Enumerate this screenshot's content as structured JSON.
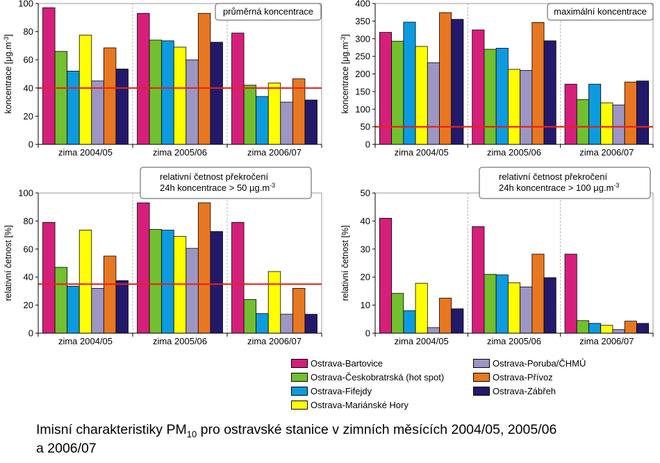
{
  "categories": [
    "zima 2004/05",
    "zima 2005/06",
    "zima 2006/07"
  ],
  "series_names": [
    "Ostrava-Bartovice",
    "Ostrava-Českobratrská (hot spot)",
    "Ostrava-Fifejdy",
    "Ostrava-Mariánské Hory",
    "Ostrava-Poruba/ČHMÚ",
    "Ostrava-Přívoz",
    "Ostrava-Zábřeh"
  ],
  "series_colors": [
    "#d61f7b",
    "#72bf2f",
    "#0d9be0",
    "#ffff00",
    "#9d96c4",
    "#e87722",
    "#23196b"
  ],
  "threshold_color": "#e2231a",
  "chart_data": [
    {
      "type": "bar",
      "title": "průměrná koncentrace",
      "ylabel": "koncentrace [μg.m-3]",
      "ylabel_main": "koncentrace [μg.m",
      "ylabel_sup": "-3",
      "ylabel_end": "]",
      "ylim": [
        0,
        100
      ],
      "yticks": [
        "0",
        "20",
        "40",
        "60",
        "80",
        "100"
      ],
      "threshold": 40,
      "categories": [
        "zima 2004/05",
        "zima 2005/06",
        "zima 2006/07"
      ],
      "series": [
        {
          "name": "Ostrava-Bartovice",
          "values": [
            97,
            93,
            79
          ]
        },
        {
          "name": "Ostrava-Českobratrská (hot spot)",
          "values": [
            66,
            74,
            42
          ]
        },
        {
          "name": "Ostrava-Fifejdy",
          "values": [
            52,
            73.5,
            34
          ]
        },
        {
          "name": "Ostrava-Mariánské Hory",
          "values": [
            77.5,
            69,
            43.5
          ]
        },
        {
          "name": "Ostrava-Poruba/ČHMÚ",
          "values": [
            45,
            60,
            30
          ]
        },
        {
          "name": "Ostrava-Přívoz",
          "values": [
            68.5,
            93,
            46.5
          ]
        },
        {
          "name": "Ostrava-Zábřeh",
          "values": [
            53.5,
            72.5,
            31.5
          ]
        }
      ]
    },
    {
      "type": "bar",
      "title": "maximální koncentrace",
      "ylabel": "koncentrace [μg.m-3]",
      "ylabel_main": "koncentrace [μg.m",
      "ylabel_sup": "-3",
      "ylabel_end": "]",
      "ylim": [
        0,
        400
      ],
      "yticks": [
        "0",
        "50",
        "100",
        "150",
        "200",
        "250",
        "300",
        "350",
        "400"
      ],
      "threshold": 50,
      "categories": [
        "zima 2004/05",
        "zima 2005/06",
        "zima 2006/07"
      ],
      "series": [
        {
          "name": "Ostrava-Bartovice",
          "values": [
            318,
            325,
            171
          ]
        },
        {
          "name": "Ostrava-Českobratrská (hot spot)",
          "values": [
            293,
            270,
            127
          ]
        },
        {
          "name": "Ostrava-Fifejdy",
          "values": [
            347,
            273,
            171
          ]
        },
        {
          "name": "Ostrava-Mariánské Hory",
          "values": [
            278,
            213,
            118
          ]
        },
        {
          "name": "Ostrava-Poruba/ČHMÚ",
          "values": [
            232,
            210,
            112
          ]
        },
        {
          "name": "Ostrava-Přívoz",
          "values": [
            374,
            346,
            177
          ]
        },
        {
          "name": "Ostrava-Zábřeh",
          "values": [
            355,
            294,
            180
          ]
        }
      ]
    },
    {
      "type": "bar",
      "title_line1": "relativní četnost překročení",
      "title_line2": "24h koncentrace > 50 µg.m",
      "title_sup": "-3",
      "ylabel": "relativní četnost [%]",
      "ylim": [
        0,
        100
      ],
      "yticks": [
        "0",
        "20",
        "40",
        "60",
        "80",
        "100"
      ],
      "threshold": 35,
      "categories": [
        "zima 2004/05",
        "zima 2005/06",
        "zima 2006/07"
      ],
      "series": [
        {
          "name": "Ostrava-Bartovice",
          "values": [
            79,
            93,
            79
          ]
        },
        {
          "name": "Ostrava-Českobratrská (hot spot)",
          "values": [
            47,
            74,
            24
          ]
        },
        {
          "name": "Ostrava-Fifejdy",
          "values": [
            33.5,
            73.5,
            14
          ]
        },
        {
          "name": "Ostrava-Mariánské Hory",
          "values": [
            73.5,
            69,
            44
          ]
        },
        {
          "name": "Ostrava-Poruba/ČHMÚ",
          "values": [
            32,
            60.5,
            13.5
          ]
        },
        {
          "name": "Ostrava-Přívoz",
          "values": [
            55,
            93,
            32
          ]
        },
        {
          "name": "Ostrava-Zábřeh",
          "values": [
            37.5,
            72.5,
            13.5
          ]
        }
      ]
    },
    {
      "type": "bar",
      "title_line1": "relativní četnost překročení",
      "title_line2": "24h koncentrace > 100 µg.m",
      "title_sup": "-3",
      "ylabel": "relativní četnost [%]",
      "ylim": [
        0,
        50
      ],
      "yticks": [
        "0",
        "10",
        "20",
        "30",
        "40",
        "50"
      ],
      "threshold": null,
      "categories": [
        "zima 2004/05",
        "zima 2005/06",
        "zima 2006/07"
      ],
      "series": [
        {
          "name": "Ostrava-Bartovice",
          "values": [
            41,
            38,
            28.2
          ]
        },
        {
          "name": "Ostrava-Českobratrská (hot spot)",
          "values": [
            14.2,
            21,
            4.5
          ]
        },
        {
          "name": "Ostrava-Fifejdy",
          "values": [
            8,
            20.8,
            3.5
          ]
        },
        {
          "name": "Ostrava-Mariánské Hory",
          "values": [
            17.8,
            18,
            2.8
          ]
        },
        {
          "name": "Ostrava-Poruba/ČHMÚ",
          "values": [
            2,
            16.5,
            1.3
          ]
        },
        {
          "name": "Ostrava-Přívoz",
          "values": [
            12.5,
            28.2,
            4.3
          ]
        },
        {
          "name": "Ostrava-Zábřeh",
          "values": [
            8.7,
            19.8,
            3.5
          ]
        }
      ]
    }
  ],
  "caption": {
    "line1_pre": "Imisní charakteristiky PM",
    "line1_sub": "10",
    "line1_post": " pro ostravské stanice v zimních měsících 2004/05, 2005/06",
    "line2": "a 2006/07"
  }
}
